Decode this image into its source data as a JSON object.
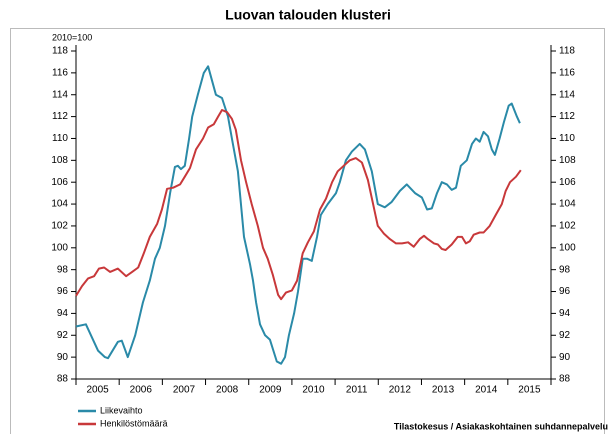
{
  "chart_data": {
    "type": "line",
    "title": "Luovan talouden klusteri",
    "y_axis_label": "2010=100",
    "source": "Tilastokesus / Asiakaskohtainen suhdannepalvelu",
    "xlim": [
      2005,
      2016
    ],
    "xticks": [
      2005,
      2006,
      2007,
      2008,
      2009,
      2010,
      2011,
      2012,
      2013,
      2014,
      2015
    ],
    "ylim": [
      88,
      118
    ],
    "yticks": [
      88,
      90,
      92,
      94,
      96,
      98,
      100,
      102,
      104,
      106,
      108,
      110,
      112,
      114,
      116,
      118
    ],
    "grid": false,
    "legend": "bottom-left",
    "series": [
      {
        "name": "Liikevaihto",
        "color": "#2a8aa8",
        "x": [
          2005.0,
          2005.23,
          2005.51,
          2005.67,
          2005.74,
          2005.97,
          2006.06,
          2006.2,
          2006.37,
          2006.55,
          2006.71,
          2006.83,
          2006.94,
          2007.06,
          2007.18,
          2007.29,
          2007.36,
          2007.43,
          2007.52,
          2007.62,
          2007.69,
          2007.82,
          2007.96,
          2008.06,
          2008.24,
          2008.38,
          2008.52,
          2008.61,
          2008.75,
          2008.89,
          2009.03,
          2009.1,
          2009.17,
          2009.26,
          2009.38,
          2009.49,
          2009.65,
          2009.75,
          2009.84,
          2009.93,
          2010.05,
          2010.14,
          2010.25,
          2010.35,
          2010.46,
          2010.58,
          2010.67,
          2010.83,
          2011.02,
          2011.11,
          2011.25,
          2011.39,
          2011.57,
          2011.69,
          2011.85,
          2011.99,
          2012.15,
          2012.31,
          2012.5,
          2012.66,
          2012.85,
          2013.01,
          2013.13,
          2013.24,
          2013.36,
          2013.47,
          2013.59,
          2013.7,
          2013.8,
          2013.91,
          2014.05,
          2014.17,
          2014.26,
          2014.35,
          2014.44,
          2014.54,
          2014.63,
          2014.7,
          2014.81,
          2014.91,
          2015.02,
          2015.09,
          2015.21,
          2015.28
        ],
        "values": [
          92.8,
          93.0,
          90.6,
          90,
          89.9,
          91.4,
          91.5,
          90,
          92,
          95,
          97,
          99,
          100,
          102,
          105,
          107.4,
          107.5,
          107.2,
          107.5,
          110,
          112,
          114,
          116,
          116.6,
          114,
          113.7,
          112,
          110,
          107,
          101,
          98.5,
          97,
          95,
          93,
          92,
          91.6,
          89.6,
          89.4,
          90,
          92,
          94,
          96,
          99,
          99,
          98.8,
          101,
          103,
          104,
          105,
          106,
          108,
          108.8,
          109.5,
          109,
          107,
          104,
          103.7,
          104.2,
          105.2,
          105.8,
          105,
          104.6,
          103.5,
          103.6,
          105,
          106,
          105.8,
          105.3,
          105.5,
          107.5,
          108,
          109.5,
          110,
          109.7,
          110.6,
          110.2,
          109,
          108.5,
          110,
          111.5,
          113,
          113.2,
          112,
          111.4
        ]
      },
      {
        "name": "Henkilöstömäärä",
        "color": "#c8383a",
        "x": [
          2005.0,
          2005.14,
          2005.28,
          2005.42,
          2005.53,
          2005.65,
          2005.79,
          2005.97,
          2006.16,
          2006.3,
          2006.44,
          2006.57,
          2006.71,
          2006.88,
          2006.99,
          2007.11,
          2007.25,
          2007.41,
          2007.52,
          2007.64,
          2007.78,
          2007.94,
          2008.06,
          2008.19,
          2008.29,
          2008.38,
          2008.5,
          2008.61,
          2008.7,
          2008.82,
          2008.94,
          2009.07,
          2009.21,
          2009.33,
          2009.44,
          2009.56,
          2009.68,
          2009.75,
          2009.86,
          2010.0,
          2010.12,
          2010.25,
          2010.37,
          2010.51,
          2010.65,
          2010.79,
          2010.93,
          2011.06,
          2011.2,
          2011.34,
          2011.48,
          2011.62,
          2011.76,
          2011.88,
          2011.99,
          2012.13,
          2012.27,
          2012.41,
          2012.55,
          2012.69,
          2012.82,
          2012.96,
          2013.06,
          2013.15,
          2013.29,
          2013.38,
          2013.47,
          2013.56,
          2013.7,
          2013.84,
          2013.94,
          2014.03,
          2014.12,
          2014.21,
          2014.35,
          2014.44,
          2014.58,
          2014.72,
          2014.86,
          2014.95,
          2015.05,
          2015.19,
          2015.3
        ],
        "values": [
          95.6,
          96.5,
          97.2,
          97.4,
          98.1,
          98.2,
          97.8,
          98.1,
          97.4,
          97.8,
          98.2,
          99.5,
          101,
          102.2,
          103.5,
          105.4,
          105.5,
          105.8,
          106.5,
          107.3,
          109,
          110,
          111,
          111.3,
          112,
          112.6,
          112.4,
          111.8,
          110.8,
          108,
          106,
          104,
          102,
          100,
          99,
          97.5,
          95.7,
          95.3,
          95.9,
          96.1,
          97,
          99.5,
          100.5,
          101.5,
          103.5,
          104.5,
          106,
          107,
          107.5,
          108,
          108.2,
          107.8,
          106.2,
          104,
          102,
          101.3,
          100.8,
          100.4,
          100.4,
          100.5,
          100.1,
          100.8,
          101.1,
          100.8,
          100.4,
          100.3,
          99.9,
          99.8,
          100.3,
          101,
          101,
          100.4,
          100.6,
          101.2,
          101.4,
          101.4,
          102,
          103,
          104,
          105.2,
          106,
          106.5,
          107.1
        ]
      }
    ]
  }
}
